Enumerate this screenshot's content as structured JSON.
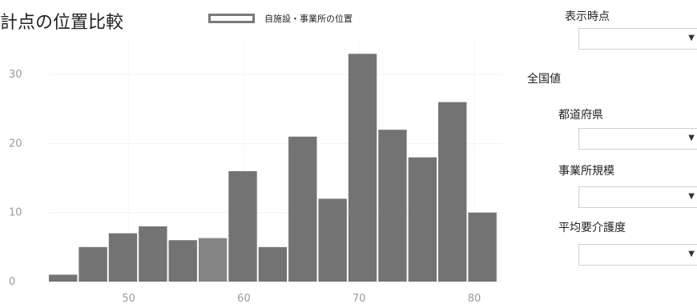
{
  "header": {
    "title": "計点の位置比較",
    "legend_label": "自施設・事業所の位置"
  },
  "sidebar": {
    "display_time_label": "表示時点",
    "national_label": "全国値",
    "prefecture_label": "都道府県",
    "facility_size_label": "事業所規模",
    "care_level_label": "平均要介護度",
    "dropdown_arrow": "▼"
  },
  "colors": {
    "bar": "#737373",
    "highlight_bar": "#858585",
    "legend_border": "#7a7a7a"
  },
  "chart_data": {
    "type": "bar",
    "title": "",
    "xlabel": "",
    "ylabel": "",
    "x_ticks": [
      50,
      60,
      70,
      80
    ],
    "y_ticks": [
      0,
      10,
      20,
      30
    ],
    "xlim": [
      43,
      82.5
    ],
    "ylim": [
      0,
      35
    ],
    "grid": true,
    "bin_width": 2.6,
    "bins": [
      {
        "x": 44.3,
        "value": 1
      },
      {
        "x": 46.9,
        "value": 5
      },
      {
        "x": 49.5,
        "value": 7
      },
      {
        "x": 52.1,
        "value": 8
      },
      {
        "x": 54.7,
        "value": 6
      },
      {
        "x": 57.3,
        "value": 6.3,
        "highlight": true
      },
      {
        "x": 59.9,
        "value": 16
      },
      {
        "x": 62.5,
        "value": 5
      },
      {
        "x": 65.1,
        "value": 21
      },
      {
        "x": 67.7,
        "value": 12
      },
      {
        "x": 70.3,
        "value": 33
      },
      {
        "x": 72.9,
        "value": 22
      },
      {
        "x": 75.5,
        "value": 18
      },
      {
        "x": 78.1,
        "value": 26
      },
      {
        "x": 80.7,
        "value": 10
      }
    ]
  }
}
